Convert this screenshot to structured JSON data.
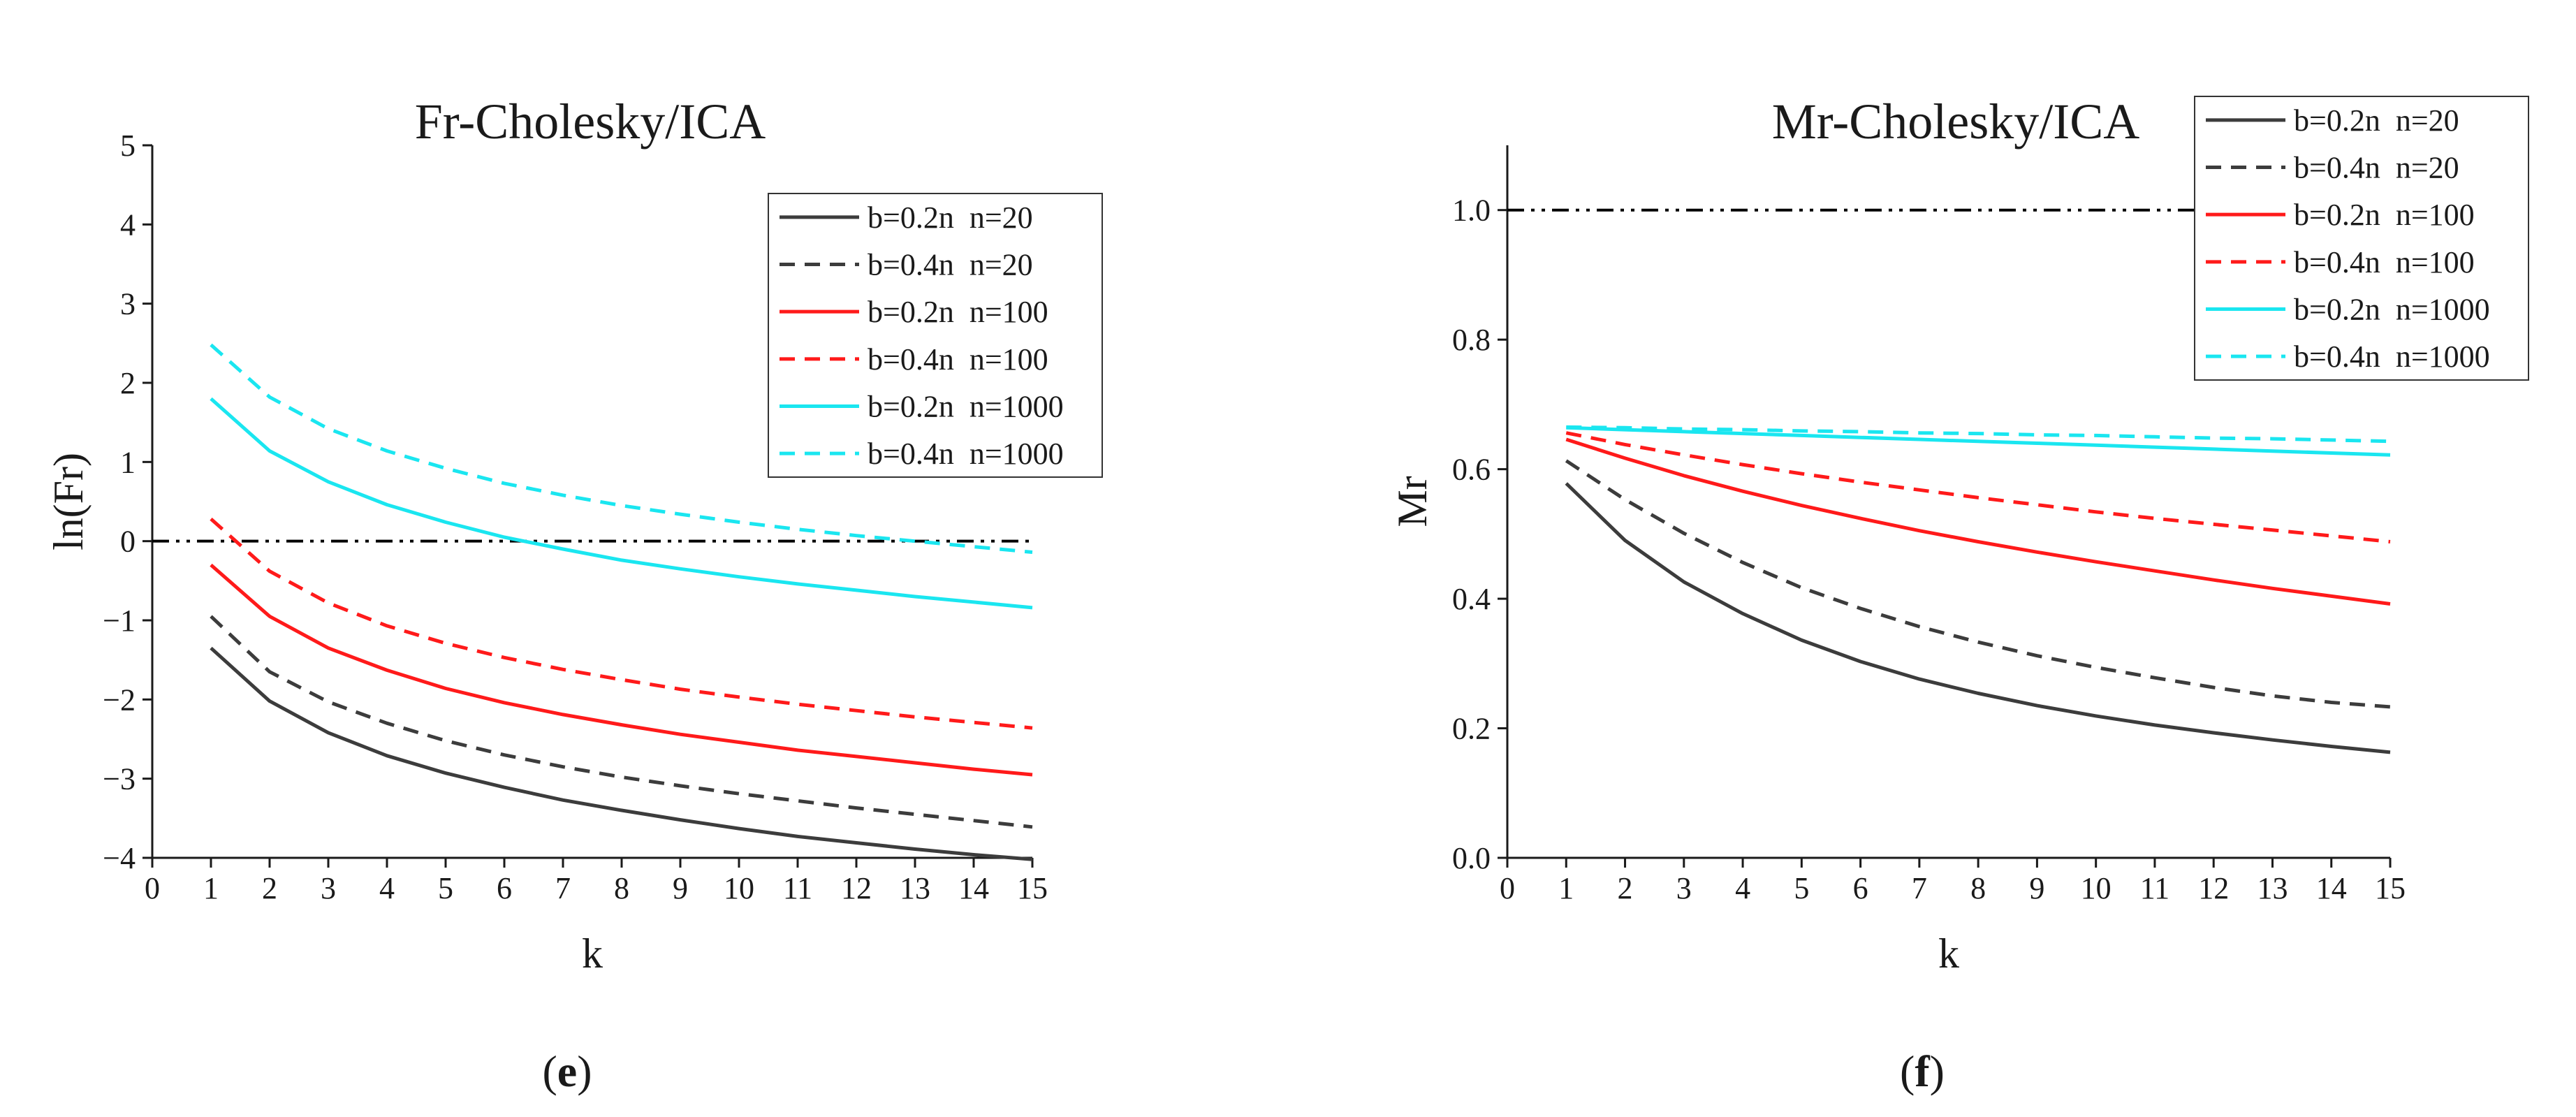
{
  "chart_data": [
    {
      "type": "line",
      "title": "Fr-Cholesky/ICA",
      "xlabel": "k",
      "ylabel": "ln(Fr)",
      "panel_label": "e",
      "xlim": [
        0,
        15
      ],
      "ylim": [
        -4,
        5
      ],
      "x_ticks": [
        "0",
        "1",
        "2",
        "3",
        "4",
        "5",
        "6",
        "7",
        "8",
        "9",
        "10",
        "11",
        "12",
        "13",
        "14",
        "15"
      ],
      "y_ticks": [
        "−4",
        "−3",
        "−2",
        "−1",
        "0",
        "1",
        "2",
        "3",
        "4",
        "5"
      ],
      "reference_line": {
        "y": 0,
        "style": "dash-dot-dot",
        "color": "#000000"
      },
      "grid": false,
      "legend_position": "top-right",
      "x": [
        1,
        2,
        3,
        4,
        5,
        6,
        7,
        8,
        9,
        10,
        11,
        12,
        13,
        14,
        15
      ],
      "series": [
        {
          "name": "b=0.2n  n=20",
          "color": "#3c3c3c",
          "dash": "solid",
          "values": [
            -1.35,
            -2.02,
            -2.42,
            -2.71,
            -2.93,
            -3.11,
            -3.27,
            -3.4,
            -3.52,
            -3.63,
            -3.73,
            -3.81,
            -3.89,
            -3.96,
            -4.02
          ]
        },
        {
          "name": "b=0.4n  n=20",
          "color": "#3c3c3c",
          "dash": "dashed",
          "values": [
            -0.95,
            -1.65,
            -2.03,
            -2.3,
            -2.52,
            -2.7,
            -2.85,
            -2.98,
            -3.09,
            -3.19,
            -3.28,
            -3.37,
            -3.45,
            -3.53,
            -3.61
          ]
        },
        {
          "name": "b=0.2n  n=100",
          "color": "#ff1a1a",
          "dash": "solid",
          "values": [
            -0.3,
            -0.95,
            -1.35,
            -1.63,
            -1.86,
            -2.04,
            -2.19,
            -2.32,
            -2.44,
            -2.54,
            -2.64,
            -2.72,
            -2.8,
            -2.88,
            -2.95
          ]
        },
        {
          "name": "b=0.4n  n=100",
          "color": "#ff1a1a",
          "dash": "dashed",
          "values": [
            0.28,
            -0.38,
            -0.78,
            -1.07,
            -1.29,
            -1.47,
            -1.62,
            -1.75,
            -1.87,
            -1.97,
            -2.06,
            -2.14,
            -2.22,
            -2.29,
            -2.36
          ]
        },
        {
          "name": "b=0.2n  n=1000",
          "color": "#1ae6f0",
          "dash": "solid",
          "values": [
            1.8,
            1.14,
            0.75,
            0.46,
            0.24,
            0.05,
            -0.1,
            -0.24,
            -0.35,
            -0.45,
            -0.54,
            -0.62,
            -0.7,
            -0.77,
            -0.84
          ]
        },
        {
          "name": "b=0.4n  n=1000",
          "color": "#1ae6f0",
          "dash": "dashed",
          "values": [
            2.48,
            1.82,
            1.42,
            1.14,
            0.92,
            0.73,
            0.58,
            0.45,
            0.34,
            0.24,
            0.15,
            0.07,
            0.0,
            -0.07,
            -0.14
          ]
        }
      ]
    },
    {
      "type": "line",
      "title": "Mr-Cholesky/ICA",
      "xlabel": "k",
      "ylabel": "Mr",
      "panel_label": "f",
      "xlim": [
        0,
        15
      ],
      "ylim": [
        0,
        1.1
      ],
      "x_ticks": [
        "0",
        "1",
        "2",
        "3",
        "4",
        "5",
        "6",
        "7",
        "8",
        "9",
        "10",
        "11",
        "12",
        "13",
        "14",
        "15"
      ],
      "y_ticks": [
        "0.0",
        "0.2",
        "0.4",
        "0.6",
        "0.8",
        "1.0"
      ],
      "reference_line": {
        "y": 1.0,
        "style": "dash-dot-dot",
        "color": "#000000"
      },
      "grid": false,
      "legend_position": "top-right",
      "x": [
        1,
        2,
        3,
        4,
        5,
        6,
        7,
        8,
        9,
        10,
        11,
        12,
        13,
        14,
        15
      ],
      "series": [
        {
          "name": "b=0.2n  n=20",
          "color": "#3c3c3c",
          "dash": "solid",
          "values": [
            0.578,
            0.49,
            0.426,
            0.377,
            0.336,
            0.303,
            0.276,
            0.254,
            0.235,
            0.219,
            0.205,
            0.193,
            0.182,
            0.172,
            0.163
          ]
        },
        {
          "name": "b=0.4n  n=20",
          "color": "#3c3c3c",
          "dash": "dashed",
          "values": [
            0.613,
            0.553,
            0.501,
            0.456,
            0.417,
            0.385,
            0.357,
            0.333,
            0.312,
            0.294,
            0.278,
            0.263,
            0.25,
            0.24,
            0.233
          ]
        },
        {
          "name": "b=0.2n  n=100",
          "color": "#ff1a1a",
          "dash": "solid",
          "values": [
            0.646,
            0.617,
            0.59,
            0.566,
            0.544,
            0.524,
            0.505,
            0.488,
            0.472,
            0.457,
            0.443,
            0.429,
            0.416,
            0.404,
            0.392
          ]
        },
        {
          "name": "b=0.4n  n=100",
          "color": "#ff1a1a",
          "dash": "dashed",
          "values": [
            0.656,
            0.638,
            0.622,
            0.607,
            0.593,
            0.58,
            0.568,
            0.556,
            0.545,
            0.534,
            0.524,
            0.515,
            0.506,
            0.497,
            0.488
          ]
        },
        {
          "name": "b=0.2n  n=1000",
          "color": "#1ae6f0",
          "dash": "solid",
          "values": [
            0.664,
            0.661,
            0.658,
            0.655,
            0.652,
            0.649,
            0.646,
            0.643,
            0.64,
            0.637,
            0.634,
            0.631,
            0.628,
            0.625,
            0.622
          ]
        },
        {
          "name": "b=0.4n  n=1000",
          "color": "#1ae6f0",
          "dash": "dashed",
          "values": [
            0.665,
            0.664,
            0.662,
            0.661,
            0.659,
            0.658,
            0.656,
            0.655,
            0.653,
            0.652,
            0.65,
            0.648,
            0.647,
            0.645,
            0.643
          ]
        }
      ]
    }
  ]
}
